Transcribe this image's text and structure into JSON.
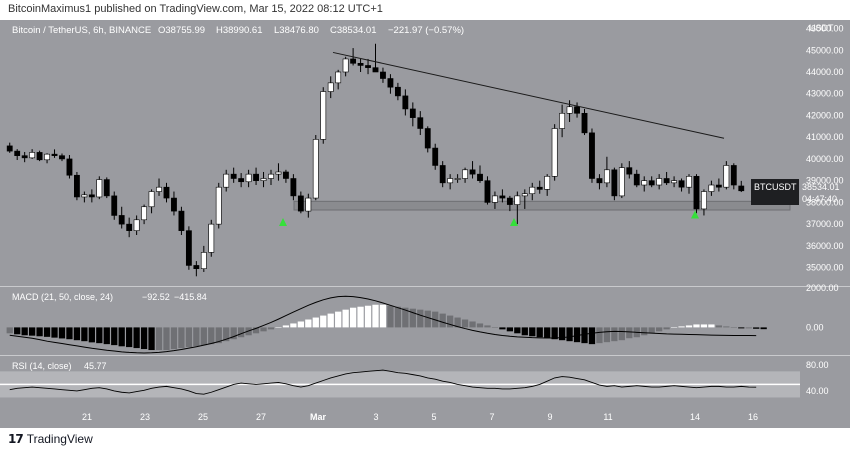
{
  "header": {
    "attribution": "BitcoinMaximus1 published on TradingView.com, Mar 15, 2022 08:12 UTC+1"
  },
  "footer": {
    "logo_glyph": "17",
    "brand": "TradingView"
  },
  "colors": {
    "background": "#9a9ba0",
    "up_candle": "#ffffff",
    "down_candle": "#000000",
    "signal_arrow": "#35e03a",
    "support_zone": "#8a8b8f",
    "trendline": "#1a1a1a",
    "rsi_band": "#b4b5b9"
  },
  "chart_data": [
    {
      "type": "candlestick",
      "title": "Bitcoin / TetherUS, 6h, BINANCE",
      "ohlc_label": {
        "o": "O38755.99",
        "h": "H38990.61",
        "l": "L38476.80",
        "c": "C38534.01",
        "change": "−221.97 (−0.57%)"
      },
      "symbol_tag": "BTCUSDT",
      "last_price": "38534.01",
      "countdown": "04:47:40",
      "currency": "USDT",
      "y_ticks": [
        "46000.00",
        "45000.00",
        "44000.00",
        "43000.00",
        "42000.00",
        "41000.00",
        "40000.00",
        "39000.00",
        "38000.00",
        "37000.00",
        "36000.00",
        "35000.00"
      ],
      "ylim": [
        34200,
        46300
      ],
      "x_ticks": [
        "21",
        "23",
        "25",
        "27",
        "Mar",
        "3",
        "5",
        "7",
        "9",
        "11",
        "14",
        "16"
      ],
      "support_zone": [
        37650,
        38050
      ],
      "trendline": {
        "from_price": 44900,
        "to_price": 40950
      },
      "signal_arrows": [
        37050,
        37050,
        37400
      ],
      "candles": [
        [
          40600,
          40750,
          40280,
          40360
        ],
        [
          40360,
          40450,
          39950,
          40150
        ],
        [
          40150,
          40320,
          39850,
          40050
        ],
        [
          40050,
          40450,
          40000,
          40300
        ],
        [
          40300,
          40380,
          39900,
          39960
        ],
        [
          39960,
          40260,
          39800,
          40220
        ],
        [
          40220,
          40440,
          40050,
          40150
        ],
        [
          40150,
          40250,
          39900,
          40000
        ],
        [
          40000,
          40180,
          39100,
          39250
        ],
        [
          39250,
          39400,
          38100,
          38250
        ],
        [
          38250,
          38500,
          38000,
          38350
        ],
        [
          38350,
          38600,
          38000,
          38250
        ],
        [
          38250,
          39200,
          38150,
          39050
        ],
        [
          39050,
          39150,
          38200,
          38300
        ],
        [
          38300,
          38500,
          37200,
          37400
        ],
        [
          37400,
          37800,
          36800,
          37000
        ],
        [
          37000,
          37300,
          36400,
          36700
        ],
        [
          36700,
          37400,
          36500,
          37200
        ],
        [
          37200,
          37900,
          37000,
          37800
        ],
        [
          37800,
          38600,
          37500,
          38500
        ],
        [
          38500,
          39100,
          38300,
          38700
        ],
        [
          38700,
          38900,
          38000,
          38200
        ],
        [
          38200,
          38500,
          37400,
          37600
        ],
        [
          37600,
          37800,
          36500,
          36700
        ],
        [
          36700,
          36900,
          34900,
          35100
        ],
        [
          35100,
          35300,
          34600,
          34950
        ],
        [
          34950,
          36000,
          34800,
          35700
        ],
        [
          35700,
          37200,
          35500,
          37000
        ],
        [
          37000,
          38900,
          36800,
          38700
        ],
        [
          38700,
          39500,
          38500,
          39300
        ],
        [
          39300,
          39600,
          38900,
          39100
        ],
        [
          39100,
          39350,
          38700,
          38950
        ],
        [
          38950,
          39500,
          38700,
          39300
        ],
        [
          39300,
          39600,
          38800,
          39000
        ],
        [
          39000,
          39400,
          38700,
          39100
        ],
        [
          39100,
          39500,
          38800,
          39300
        ],
        [
          39300,
          39800,
          39000,
          39400
        ],
        [
          39400,
          39500,
          38900,
          39100
        ],
        [
          39100,
          39300,
          38100,
          38300
        ],
        [
          38300,
          38500,
          37500,
          37600
        ],
        [
          37600,
          38400,
          37300,
          38200
        ],
        [
          38200,
          41100,
          38100,
          40900
        ],
        [
          40900,
          43300,
          40700,
          43100
        ],
        [
          43100,
          43800,
          42800,
          43500
        ],
        [
          43500,
          44100,
          43200,
          44000
        ],
        [
          44000,
          44700,
          43800,
          44600
        ],
        [
          44600,
          45100,
          44300,
          44400
        ],
        [
          44400,
          44600,
          44000,
          44300
        ],
        [
          44300,
          44600,
          43900,
          44200
        ],
        [
          44200,
          45300,
          44000,
          44000
        ],
        [
          44000,
          44200,
          43500,
          43700
        ],
        [
          43700,
          43900,
          43000,
          43300
        ],
        [
          43300,
          43500,
          42700,
          42900
        ],
        [
          42900,
          43200,
          42000,
          42300
        ],
        [
          42300,
          42600,
          41500,
          41900
        ],
        [
          41900,
          42200,
          41100,
          41400
        ],
        [
          41400,
          41500,
          40300,
          40500
        ],
        [
          40500,
          40700,
          39500,
          39700
        ],
        [
          39700,
          39900,
          38700,
          38900
        ],
        [
          38900,
          39300,
          38600,
          39100
        ],
        [
          39100,
          39300,
          38900,
          39100
        ],
        [
          39100,
          39600,
          38900,
          39500
        ],
        [
          39500,
          39900,
          39100,
          39300
        ],
        [
          39300,
          39700,
          38900,
          39000
        ],
        [
          39000,
          39200,
          37900,
          38000
        ],
        [
          38000,
          38500,
          37700,
          38300
        ],
        [
          38300,
          38600,
          38000,
          38200
        ],
        [
          38200,
          38300,
          37600,
          37900
        ],
        [
          37900,
          38500,
          37000,
          38300
        ],
        [
          38300,
          38600,
          37700,
          38400
        ],
        [
          38400,
          38900,
          38100,
          38700
        ],
        [
          38700,
          39000,
          38400,
          38600
        ],
        [
          38600,
          39300,
          38300,
          39200
        ],
        [
          39200,
          41600,
          39000,
          41400
        ],
        [
          41400,
          42500,
          41000,
          42100
        ],
        [
          42100,
          42700,
          41700,
          42400
        ],
        [
          42400,
          42600,
          41900,
          42100
        ],
        [
          42100,
          42300,
          41100,
          41200
        ],
        [
          41200,
          41400,
          38900,
          39100
        ],
        [
          39100,
          39300,
          38600,
          38900
        ],
        [
          38900,
          40100,
          38700,
          39500
        ],
        [
          39500,
          39600,
          38100,
          38300
        ],
        [
          38300,
          39800,
          38200,
          39600
        ],
        [
          39600,
          39900,
          39100,
          39300
        ],
        [
          39300,
          39500,
          38700,
          38800
        ],
        [
          38800,
          39200,
          38500,
          39000
        ],
        [
          39000,
          39200,
          38700,
          38800
        ],
        [
          38800,
          39300,
          38600,
          39100
        ],
        [
          39100,
          39400,
          38800,
          38900
        ],
        [
          38900,
          39200,
          38700,
          39000
        ],
        [
          39000,
          39100,
          38500,
          38700
        ],
        [
          38700,
          39300,
          38400,
          39200
        ],
        [
          39200,
          39300,
          37500,
          37700
        ],
        [
          37700,
          38600,
          37400,
          38500
        ],
        [
          38500,
          39000,
          38300,
          38800
        ],
        [
          38800,
          39100,
          38500,
          38700
        ],
        [
          38700,
          39900,
          38600,
          39700
        ],
        [
          39700,
          39800,
          38600,
          38800
        ],
        [
          38755.99,
          38990.61,
          38476.8,
          38534.01
        ]
      ]
    },
    {
      "type": "bar",
      "title": "MACD (21, 50, close, 24)",
      "value_labels": [
        "−92.52",
        "−415.84"
      ],
      "y_ticks": [
        "2000.00",
        "0.00"
      ],
      "ylim": [
        -1300,
        2000
      ],
      "histogram": [
        -300,
        -350,
        -400,
        -420,
        -450,
        -480,
        -520,
        -560,
        -600,
        -650,
        -700,
        -760,
        -800,
        -850,
        -900,
        -960,
        -1000,
        -1050,
        -1100,
        -1150,
        -1150,
        -1150,
        -1100,
        -1050,
        -1000,
        -950,
        -900,
        -850,
        -800,
        -700,
        -600,
        -500,
        -400,
        -300,
        -200,
        -100,
        0,
        100,
        200,
        300,
        400,
        500,
        600,
        700,
        800,
        900,
        1000,
        1050,
        1100,
        1150,
        1150,
        1100,
        1050,
        1000,
        950,
        900,
        850,
        800,
        700,
        600,
        500,
        400,
        300,
        200,
        100,
        0,
        -100,
        -200,
        -300,
        -400,
        -450,
        -500,
        -550,
        -600,
        -650,
        -700,
        -750,
        -800,
        -850,
        -800,
        -750,
        -700,
        -650,
        -550,
        -500,
        -400,
        -300,
        -200,
        -100,
        0,
        50,
        100,
        150,
        150,
        150,
        100,
        50,
        0,
        -50,
        -50,
        -70,
        -90
      ],
      "macd_line": [
        -400,
        -450,
        -500,
        -550,
        -620,
        -700,
        -760,
        -820,
        -880,
        -940,
        -1000,
        -1060,
        -1110,
        -1160,
        -1200,
        -1240,
        -1270,
        -1290,
        -1300,
        -1290,
        -1270,
        -1230,
        -1180,
        -1120,
        -1050,
        -980,
        -900,
        -820,
        -720,
        -600,
        -470,
        -320,
        -180,
        -50,
        100,
        250,
        420,
        600,
        780,
        950,
        1120,
        1270,
        1400,
        1500,
        1560,
        1580,
        1560,
        1510,
        1440,
        1350,
        1240,
        1120,
        1000,
        880,
        750,
        620,
        500,
        380,
        260,
        150,
        40,
        -60,
        -150,
        -230,
        -300,
        -360,
        -410,
        -450,
        -480,
        -500,
        -520,
        -530,
        -540,
        -540,
        -520,
        -480,
        -420,
        -350,
        -300,
        -250,
        -220,
        -200,
        -210,
        -230,
        -250,
        -270,
        -290,
        -310,
        -330,
        -340,
        -350,
        -360,
        -370,
        -380,
        -390,
        -400,
        -405,
        -410,
        -410,
        -414,
        -415.84
      ]
    },
    {
      "type": "line",
      "title": "RSI (14, close)",
      "value_label": "45.77",
      "y_ticks": [
        "80.00",
        "40.00"
      ],
      "band": [
        30,
        70
      ],
      "midline": 50,
      "ylim": [
        20,
        92
      ],
      "values": [
        42,
        44,
        45,
        46,
        45,
        44,
        43,
        42,
        41,
        40,
        42,
        44,
        45,
        43,
        40,
        38,
        37,
        39,
        41,
        44,
        46,
        47,
        45,
        43,
        40,
        36,
        35,
        38,
        42,
        46,
        50,
        52,
        51,
        50,
        51,
        52,
        53,
        51,
        48,
        46,
        48,
        52,
        56,
        60,
        63,
        66,
        68,
        69,
        70,
        71,
        72,
        70,
        68,
        67,
        65,
        63,
        60,
        58,
        55,
        53,
        50,
        48,
        46,
        45,
        44,
        44,
        43,
        43,
        44,
        45,
        47,
        50,
        55,
        60,
        62,
        61,
        59,
        57,
        53,
        49,
        47,
        48,
        46,
        47,
        48,
        47,
        46,
        46,
        47,
        48,
        47,
        46,
        45,
        46,
        47,
        47,
        46,
        46,
        47,
        46,
        45.77
      ]
    }
  ]
}
